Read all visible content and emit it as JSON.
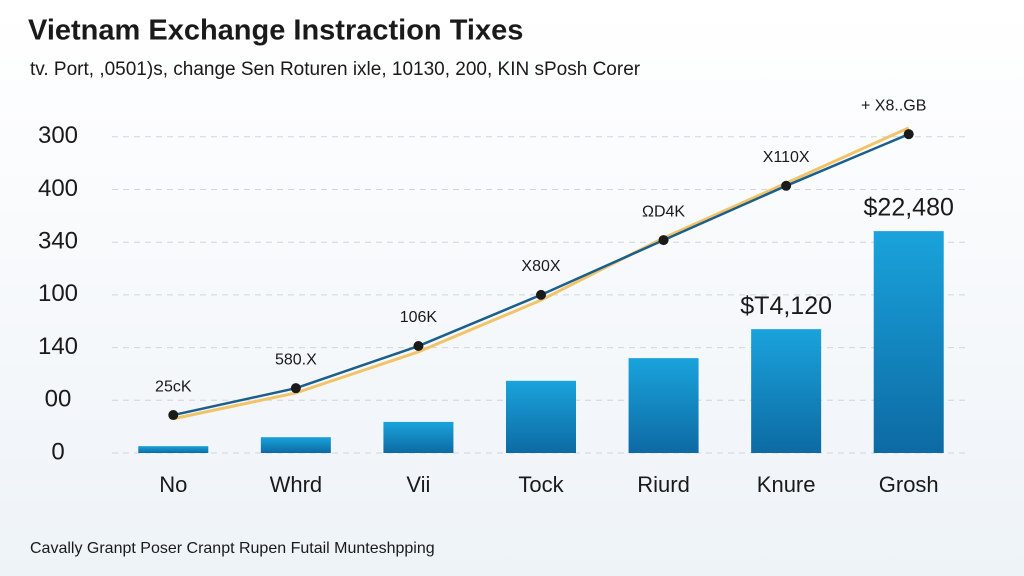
{
  "chart_data": {
    "type": "bar",
    "title": "Vietnam Exchange Instraction Tixes",
    "subtitle": "tv. Port, ,0501)s, change Sen Roturen ixle, 10130, 200, KIN sPosh Corer",
    "footer": "Cavally Granpt Poser Cranpt Rupen Futail Munteshpping",
    "categories": [
      "No",
      "Whrd",
      "Vii",
      "Tock",
      "Riurd",
      "Knure",
      "Grosh"
    ],
    "values": [
      0.13,
      0.3,
      0.59,
      1.37,
      1.8,
      2.35,
      4.21
    ],
    "color": "#1690cc",
    "bar_labels": [
      null,
      null,
      null,
      null,
      null,
      "$T4,120",
      "$22,480"
    ],
    "series": [
      {
        "color": "#f2c46a",
        "values": [
          0.65,
          1.14,
          1.92,
          2.9,
          4.08,
          5.12,
          6.17
        ]
      },
      {
        "color": "#1b5f8c",
        "values": [
          0.72,
          1.23,
          2.03,
          3.0,
          4.04,
          5.07,
          6.05
        ],
        "point_labels": [
          "25сK",
          "580.X",
          "106K",
          "X80X",
          "ΩD4K",
          "X110X",
          "+ X8..GB"
        ]
      }
    ],
    "ylim": [
      0,
      6.3
    ],
    "yticks": [
      {
        "value": 0,
        "label": "0"
      },
      {
        "value": 1,
        "label": "00"
      },
      {
        "value": 2,
        "label": "140"
      },
      {
        "value": 3,
        "label": "100"
      },
      {
        "value": 4,
        "label": "340"
      },
      {
        "value": 5,
        "label": "400"
      },
      {
        "value": 6,
        "label": "300"
      }
    ],
    "grid": true
  }
}
